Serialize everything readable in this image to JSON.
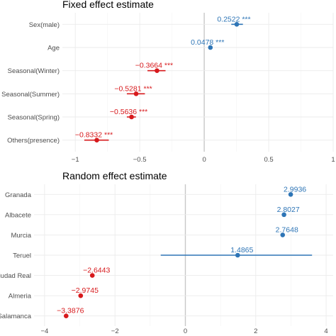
{
  "colors": {
    "positive": "#2e75b6",
    "negative": "#d7191c",
    "grid": "#ebebeb",
    "zero": "#c8c8c8"
  },
  "chart_data": [
    {
      "type": "scatter",
      "title": "Fixed effect estimate",
      "xlim": [
        -1.1,
        1.0
      ],
      "xticks": [
        -1,
        -0.5,
        0,
        0.5,
        1
      ],
      "xtick_labels": [
        "−1",
        "−0.5",
        "0",
        "0.5",
        "1"
      ],
      "grid": true,
      "categories": [
        "Sex(male)",
        "Age",
        "Seasonal(Winter)",
        "Seasonal(Summer)",
        "Seasonal(Spring)",
        "Others(presence)"
      ],
      "values": [
        0.2522,
        0.0478,
        -0.3664,
        -0.5281,
        -0.5636,
        -0.8332
      ],
      "ci_low": [
        0.21,
        0.045,
        -0.44,
        -0.6,
        -0.6,
        -0.93
      ],
      "ci_high": [
        0.3,
        0.051,
        -0.3,
        -0.46,
        -0.53,
        -0.74
      ],
      "labels": [
        "0.2522 ***",
        "0.0478 ***",
        "−0.3664 ***",
        "−0.5281 ***",
        "−0.5636 ***",
        "−0.8332 ***"
      ]
    },
    {
      "type": "scatter",
      "title": "Random effect estimate",
      "xlim": [
        -4.3,
        4.2
      ],
      "xticks": [
        -4,
        -2,
        0,
        2,
        4
      ],
      "xtick_labels": [
        "−4",
        "−2",
        "0",
        "2",
        "4"
      ],
      "grid": true,
      "categories": [
        "Granada",
        "Albacete",
        "Murcia",
        "Teruel",
        "Ciudad Real",
        "Almeria",
        "Salamanca"
      ],
      "values": [
        2.9936,
        2.8027,
        2.7648,
        1.4865,
        -2.6443,
        -2.9745,
        -3.3876
      ],
      "ci_low": [
        2.9936,
        2.8027,
        2.7648,
        -0.7,
        -2.6443,
        -2.9745,
        -3.3876
      ],
      "ci_high": [
        2.9936,
        2.8027,
        2.7648,
        3.6,
        -2.6443,
        -2.9745,
        -3.3876
      ],
      "labels": [
        "2.9936",
        "2.8027",
        "2.7648",
        "1.4865",
        "−2.6443",
        "−2.9745",
        "−3.3876"
      ]
    }
  ]
}
